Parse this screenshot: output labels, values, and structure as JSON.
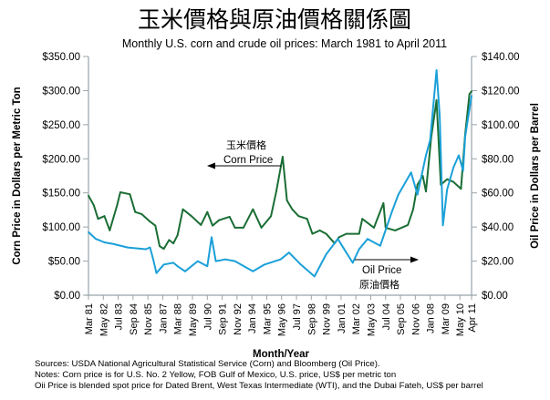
{
  "chart_data": {
    "type": "line",
    "title": "玉米價格與原油價格關係圖",
    "subtitle": "Monthly U.S. corn and crude oil prices: March 1981 to April 2011",
    "xlabel": "Month/Year",
    "ylabel_left": "Corn Price in Dollars per Metric Ton",
    "ylabel_right": "Oil Price in Dollars per Barrel",
    "x_range": [
      "1981-03",
      "2011-04"
    ],
    "ylim_left": [
      0,
      350
    ],
    "ylim_right": [
      0,
      140
    ],
    "yticks_left": [
      "$0.00",
      "$50.00",
      "$100.00",
      "$150.00",
      "$200.00",
      "$250.00",
      "$300.00",
      "$350.00"
    ],
    "yticks_right": [
      "$0.00",
      "$20.00",
      "$40.00",
      "$60.00",
      "$80.00",
      "$100.00",
      "$120.00",
      "$140.00"
    ],
    "xticks": [
      {
        "label": "Mar 81",
        "date": "1981-03"
      },
      {
        "label": "May 82",
        "date": "1982-05"
      },
      {
        "label": "Jul 83",
        "date": "1983-07"
      },
      {
        "label": "Sep 84",
        "date": "1984-09"
      },
      {
        "label": "Nov 85",
        "date": "1985-11"
      },
      {
        "label": "Jan 87",
        "date": "1987-01"
      },
      {
        "label": "Mar 88",
        "date": "1988-03"
      },
      {
        "label": "May 89",
        "date": "1989-05"
      },
      {
        "label": "Jul 90",
        "date": "1990-07"
      },
      {
        "label": "Sep 91",
        "date": "1991-09"
      },
      {
        "label": "Nov 92",
        "date": "1992-11"
      },
      {
        "label": "Jan 94",
        "date": "1994-01"
      },
      {
        "label": "Mar 95",
        "date": "1995-03"
      },
      {
        "label": "May 96",
        "date": "1996-05"
      },
      {
        "label": "Jul 97",
        "date": "1997-07"
      },
      {
        "label": "Sep 98",
        "date": "1998-09"
      },
      {
        "label": "Nov 99",
        "date": "1999-11"
      },
      {
        "label": "Jan 01",
        "date": "2001-01"
      },
      {
        "label": "Mar 02",
        "date": "2002-03"
      },
      {
        "label": "May 03",
        "date": "2003-05"
      },
      {
        "label": "Jul 04",
        "date": "2004-07"
      },
      {
        "label": "Sep 05",
        "date": "2005-09"
      },
      {
        "label": "Nov 06",
        "date": "2006-11"
      },
      {
        "label": "Jan 08",
        "date": "2008-01"
      },
      {
        "label": "Mar 09",
        "date": "2009-03"
      },
      {
        "label": "May 10",
        "date": "2010-05"
      },
      {
        "label": "Apr 11",
        "date": "2011-04"
      }
    ],
    "grid": false,
    "legend": "none (inline annotations)",
    "series": [
      {
        "name": "Corn Price",
        "name_zh": "玉米價格",
        "axis": "left",
        "color": "#1a6e35",
        "x": [
          "1981-03",
          "1981-08",
          "1981-12",
          "1982-06",
          "1982-11",
          "1983-06",
          "1983-09",
          "1984-06",
          "1984-11",
          "1985-05",
          "1986-01",
          "1986-06",
          "1986-10",
          "1987-02",
          "1987-07",
          "1987-11",
          "1988-03",
          "1988-08",
          "1989-04",
          "1990-01",
          "1990-07",
          "1990-12",
          "1991-06",
          "1992-04",
          "1992-09",
          "1993-05",
          "1994-02",
          "1994-10",
          "1995-07",
          "1995-12",
          "1996-06",
          "1996-10",
          "1997-03",
          "1997-09",
          "1998-05",
          "1998-10",
          "1999-05",
          "1999-11",
          "2000-07",
          "2000-11",
          "2001-06",
          "2002-06",
          "2002-09",
          "2003-08",
          "2004-05",
          "2004-07",
          "2005-04",
          "2006-04",
          "2006-09",
          "2007-01",
          "2007-06",
          "2007-09",
          "2008-02",
          "2008-07",
          "2008-11",
          "2009-05",
          "2009-11",
          "2010-06",
          "2010-10",
          "2011-02",
          "2011-04"
        ],
        "values": [
          146,
          132,
          112,
          116,
          95,
          132,
          151,
          148,
          122,
          119,
          108,
          102,
          72,
          68,
          81,
          76,
          88,
          126,
          116,
          103,
          122,
          102,
          110,
          115,
          99,
          99,
          126,
          99,
          116,
          152,
          203,
          139,
          126,
          116,
          112,
          90,
          95,
          90,
          76,
          85,
          90,
          90,
          112,
          99,
          135,
          99,
          95,
          103,
          126,
          162,
          175,
          152,
          232,
          286,
          162,
          170,
          166,
          156,
          236,
          295,
          299
        ]
      },
      {
        "name": "Oil Price",
        "name_zh": "原油價格",
        "axis": "right",
        "color": "#1ba0d8",
        "x": [
          "1981-03",
          "1981-10",
          "1982-06",
          "1983-03",
          "1984-04",
          "1985-09",
          "1986-01",
          "1986-04",
          "1986-07",
          "1987-02",
          "1987-11",
          "1988-03",
          "1988-10",
          "1989-10",
          "1990-07",
          "1990-11",
          "1991-03",
          "1991-12",
          "1992-09",
          "1994-02",
          "1995-01",
          "1996-04",
          "1996-12",
          "1997-11",
          "1998-12",
          "1999-11",
          "2000-10",
          "2001-06",
          "2001-12",
          "2002-06",
          "2003-02",
          "2004-02",
          "2005-01",
          "2005-07",
          "2006-07",
          "2007-01",
          "2007-09",
          "2008-01",
          "2008-07",
          "2008-10",
          "2009-01",
          "2009-05",
          "2009-11",
          "2010-04",
          "2010-08",
          "2010-10",
          "2011-04"
        ],
        "values": [
          37,
          33,
          31,
          30,
          28,
          27,
          28,
          21,
          13,
          18,
          19,
          17,
          14,
          20,
          17,
          34,
          20,
          21,
          20,
          14,
          18,
          21,
          25,
          18,
          11,
          24,
          33,
          25,
          19,
          27,
          33,
          29,
          49,
          59,
          72,
          59,
          82,
          91,
          132,
          105,
          41,
          62,
          75,
          82,
          73,
          93,
          117
        ]
      }
    ],
    "annotations": [
      {
        "text_zh": "玉米價格",
        "text": "Corn Price",
        "arrow": "left"
      },
      {
        "text_zh": "原油價格",
        "text": "Oil Price",
        "arrow": "right"
      }
    ]
  },
  "footer": {
    "sources": "Sources:  USDA National Agricultural Statistical Service (Corn) and Bloomberg (Oil Price).",
    "notes": "Notes:  Corn price is for U.S. No. 2 Yellow, FOB Gulf of Mexico, U.S. price, US$ per metric ton",
    "oil_note": "Oii Price is blended spot price for Dated Brent, West Texas Intermediate (WTI), and the Dubai Fateh, US$ per barrel"
  }
}
